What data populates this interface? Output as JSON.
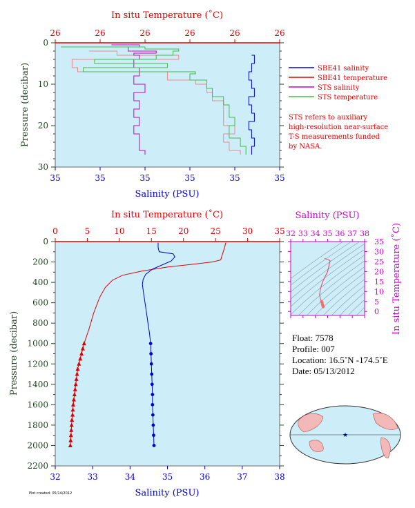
{
  "top_panel": {
    "temp_axis_label": "In situ Temperature (˚C)",
    "salinity_axis_label": "Salinity (PSU)",
    "pressure_axis_label": "Pressure (decibar)",
    "legend": [
      {
        "label": "SBE41 salinity",
        "color": "#0000cc"
      },
      {
        "label": "SBE41 temperature",
        "color": "#dd0000"
      },
      {
        "label": "STS salinity",
        "color": "#cc00cc"
      },
      {
        "label": "STS temperature",
        "color": "#44bb44"
      }
    ],
    "note_lines": [
      "STS refers to auxiliary",
      "high-resolution near-surface",
      "T-S measurements funded",
      "by NASA."
    ]
  },
  "bottom_panel": {
    "temp_axis_label": "In situ Temperature (˚C)",
    "salinity_axis_label": "Salinity (PSU)",
    "pressure_axis_label": "Pressure (decibar)"
  },
  "ts_panel": {
    "salinity_label": "Salinity (PSU)",
    "temp_label": "In situ Temperature (˚C)"
  },
  "info": {
    "float": "Float:  7578",
    "profile": "Profile:  007",
    "location": "Location:  16.5˚N  -174.5˚E",
    "date": "Date:  05/13/2012"
  },
  "footer_text": "Plot created: 05/14/2012",
  "colors": {
    "background": "#cdeef8",
    "temperature": "#dd0000",
    "salinity": "#0000cc",
    "sts_salinity": "#cc00cc",
    "sts_temperature": "#44bb44",
    "sts_light_temp": "#f08888",
    "ts_axis": "#cc00cc",
    "pressure_axis": "#224422"
  },
  "chart_data": [
    {
      "type": "line",
      "name": "Near-surface profile",
      "x_top": {
        "label": "In situ Temperature (˚C)",
        "ticks": [
          "26",
          "26",
          "26",
          "26",
          "26",
          "26"
        ],
        "lim": [
          25.9,
          26.3
        ]
      },
      "x_bottom": {
        "label": "Salinity (PSU)",
        "ticks": [
          "35",
          "35",
          "35",
          "35",
          "35",
          "35"
        ],
        "lim": [
          34.9,
          35.3
        ]
      },
      "y": {
        "label": "Pressure (decibar)",
        "ticks": [
          0,
          10,
          20,
          30
        ],
        "lim": [
          0,
          30
        ],
        "reversed": true
      },
      "series": [
        {
          "name": "SBE41 salinity",
          "axis": "bottom",
          "points": [
            [
              35.25,
              3
            ],
            [
              35.255,
              5
            ],
            [
              35.25,
              7
            ],
            [
              35.245,
              9
            ],
            [
              35.25,
              11
            ],
            [
              35.255,
              13
            ],
            [
              35.245,
              15
            ],
            [
              35.25,
              17
            ],
            [
              35.255,
              19
            ],
            [
              35.245,
              21
            ],
            [
              35.25,
              23
            ],
            [
              35.255,
              25
            ],
            [
              35.25,
              27
            ]
          ]
        },
        {
          "name": "SBE41 temperature",
          "axis": "top",
          "points": [
            [
              25.96,
              2
            ],
            [
              26.01,
              3
            ],
            [
              26.12,
              4
            ],
            [
              25.93,
              6
            ],
            [
              25.94,
              7
            ],
            [
              26.1,
              8
            ],
            [
              26.1,
              9
            ],
            [
              26.15,
              10
            ],
            [
              26.17,
              12
            ],
            [
              26.18,
              14
            ],
            [
              26.2,
              16
            ],
            [
              26.2,
              18
            ],
            [
              26.2,
              20
            ],
            [
              26.22,
              22
            ],
            [
              26.2,
              24
            ],
            [
              26.21,
              26
            ],
            [
              26.23,
              27
            ]
          ]
        },
        {
          "name": "STS salinity",
          "axis": "bottom",
          "points": [
            [
              35.0,
              0.5
            ],
            [
              35.05,
              1
            ],
            [
              35.03,
              2
            ],
            [
              35.08,
              2.5
            ],
            [
              35.04,
              3
            ],
            [
              35.05,
              4
            ],
            [
              35.04,
              6
            ],
            [
              35.05,
              8
            ],
            [
              35.04,
              10
            ],
            [
              35.06,
              12
            ],
            [
              35.04,
              14
            ],
            [
              35.05,
              16
            ],
            [
              35.04,
              18
            ],
            [
              35.05,
              20
            ],
            [
              35.04,
              22
            ],
            [
              35.05,
              24
            ],
            [
              35.05,
              26
            ],
            [
              35.06,
              27
            ]
          ]
        },
        {
          "name": "STS temperature",
          "axis": "top",
          "points": [
            [
              25.91,
              1
            ],
            [
              26.06,
              1.5
            ],
            [
              26.12,
              2
            ],
            [
              26.11,
              3
            ],
            [
              26.08,
              4
            ],
            [
              25.97,
              5
            ],
            [
              26.1,
              6
            ],
            [
              25.95,
              7
            ],
            [
              26.15,
              7.5
            ],
            [
              26.14,
              9
            ],
            [
              26.17,
              11
            ],
            [
              26.18,
              13
            ],
            [
              26.2,
              15
            ],
            [
              26.21,
              18
            ],
            [
              26.22,
              20
            ],
            [
              26.21,
              23
            ],
            [
              26.23,
              25
            ],
            [
              26.24,
              27
            ]
          ]
        }
      ]
    },
    {
      "type": "line",
      "name": "Full profile",
      "x_top": {
        "label": "In situ Temperature (˚C)",
        "ticks": [
          0,
          5,
          10,
          15,
          20,
          25,
          30,
          35
        ],
        "lim": [
          0,
          35
        ]
      },
      "x_bottom": {
        "label": "Salinity (PSU)",
        "ticks": [
          32,
          33,
          34,
          35,
          36,
          37,
          38
        ],
        "lim": [
          32,
          38
        ]
      },
      "y": {
        "label": "Pressure (decibar)",
        "ticks": [
          0,
          200,
          400,
          600,
          800,
          1000,
          1200,
          1400,
          1600,
          1800,
          2000,
          2200
        ],
        "lim": [
          0,
          2200
        ],
        "reversed": true
      },
      "series": [
        {
          "name": "SBE41 temperature",
          "axis": "top",
          "points": [
            [
              26.6,
              10
            ],
            [
              26.4,
              60
            ],
            [
              26.2,
              100
            ],
            [
              26.0,
              140
            ],
            [
              25.8,
              180
            ],
            [
              24.5,
              200
            ],
            [
              21.8,
              220
            ],
            [
              17.5,
              250
            ],
            [
              13.5,
              290
            ],
            [
              10.5,
              330
            ],
            [
              8.9,
              380
            ],
            [
              7.8,
              450
            ],
            [
              6.9,
              550
            ],
            [
              6.0,
              700
            ],
            [
              5.3,
              850
            ],
            [
              4.5,
              1000
            ],
            [
              4.3,
              1050
            ],
            [
              4.1,
              1100
            ],
            [
              3.9,
              1150
            ],
            [
              3.7,
              1200
            ],
            [
              3.5,
              1250
            ],
            [
              3.4,
              1300
            ],
            [
              3.3,
              1350
            ],
            [
              3.2,
              1400
            ],
            [
              3.1,
              1450
            ],
            [
              3.0,
              1500
            ],
            [
              2.9,
              1550
            ],
            [
              2.8,
              1600
            ],
            [
              2.75,
              1650
            ],
            [
              2.7,
              1700
            ],
            [
              2.6,
              1750
            ],
            [
              2.55,
              1800
            ],
            [
              2.5,
              1850
            ],
            [
              2.45,
              1900
            ],
            [
              2.4,
              1950
            ],
            [
              2.35,
              2000
            ]
          ],
          "marker_from": 1000
        },
        {
          "name": "SBE41 salinity",
          "axis": "bottom",
          "points": [
            [
              34.75,
              10
            ],
            [
              34.75,
              60
            ],
            [
              34.78,
              100
            ],
            [
              35.15,
              120
            ],
            [
              35.2,
              150
            ],
            [
              35.1,
              190
            ],
            [
              34.85,
              230
            ],
            [
              34.6,
              270
            ],
            [
              34.42,
              320
            ],
            [
              34.35,
              370
            ],
            [
              34.33,
              420
            ],
            [
              34.36,
              500
            ],
            [
              34.4,
              600
            ],
            [
              34.44,
              700
            ],
            [
              34.48,
              800
            ],
            [
              34.52,
              900
            ],
            [
              34.55,
              1000
            ],
            [
              34.56,
              1100
            ],
            [
              34.57,
              1200
            ],
            [
              34.58,
              1300
            ],
            [
              34.59,
              1400
            ],
            [
              34.6,
              1500
            ],
            [
              34.6,
              1600
            ],
            [
              34.61,
              1700
            ],
            [
              34.62,
              1800
            ],
            [
              34.63,
              1900
            ],
            [
              34.64,
              2000
            ]
          ],
          "marker_from": 1000
        }
      ]
    },
    {
      "type": "scatter",
      "name": "T-S diagram",
      "x": {
        "label": "Salinity (PSU)",
        "ticks": [
          32,
          33,
          34,
          35,
          36,
          37,
          38
        ],
        "lim": [
          32,
          38
        ]
      },
      "y": {
        "label": "In situ Temperature (˚C)",
        "ticks": [
          0,
          5,
          10,
          15,
          20,
          25,
          30,
          35
        ],
        "lim": [
          -2,
          35
        ]
      },
      "series": [
        {
          "name": "T-S curve",
          "points": [
            [
              34.75,
              26.6
            ],
            [
              35.2,
              25.5
            ],
            [
              35.0,
              20
            ],
            [
              34.6,
              15
            ],
            [
              34.4,
              11
            ],
            [
              34.35,
              8.5
            ],
            [
              34.4,
              6.5
            ],
            [
              34.5,
              5
            ],
            [
              34.55,
              4.5
            ],
            [
              34.58,
              3.5
            ],
            [
              34.62,
              2.8
            ],
            [
              34.64,
              2.35
            ]
          ]
        }
      ]
    }
  ]
}
